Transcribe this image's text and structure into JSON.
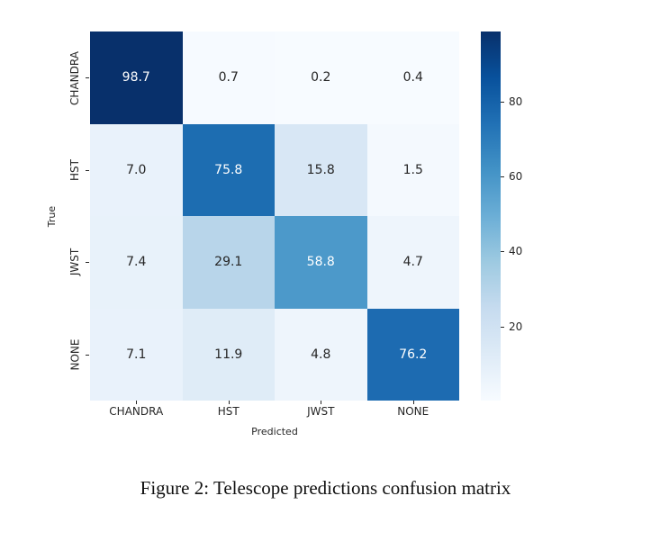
{
  "figure": {
    "caption": "Figure 2: Telescope predictions confusion matrix"
  },
  "chart_data": {
    "type": "heatmap",
    "xlabel": "Predicted",
    "ylabel": "True",
    "x_categories": [
      "CHANDRA",
      "HST",
      "JWST",
      "NONE"
    ],
    "y_categories": [
      "CHANDRA",
      "HST",
      "JWST",
      "NONE"
    ],
    "matrix": [
      [
        98.7,
        0.7,
        0.2,
        0.4
      ],
      [
        7.0,
        75.8,
        15.8,
        1.5
      ],
      [
        7.4,
        29.1,
        58.8,
        4.7
      ],
      [
        7.1,
        11.9,
        4.8,
        76.2
      ]
    ],
    "value_format": "0.1f",
    "colormap": "Blues",
    "vmin": 0.2,
    "vmax": 98.7,
    "colorbar": {
      "position": "right",
      "ticks": [
        20,
        40,
        60,
        80
      ]
    },
    "grid": false,
    "legend": "none"
  }
}
